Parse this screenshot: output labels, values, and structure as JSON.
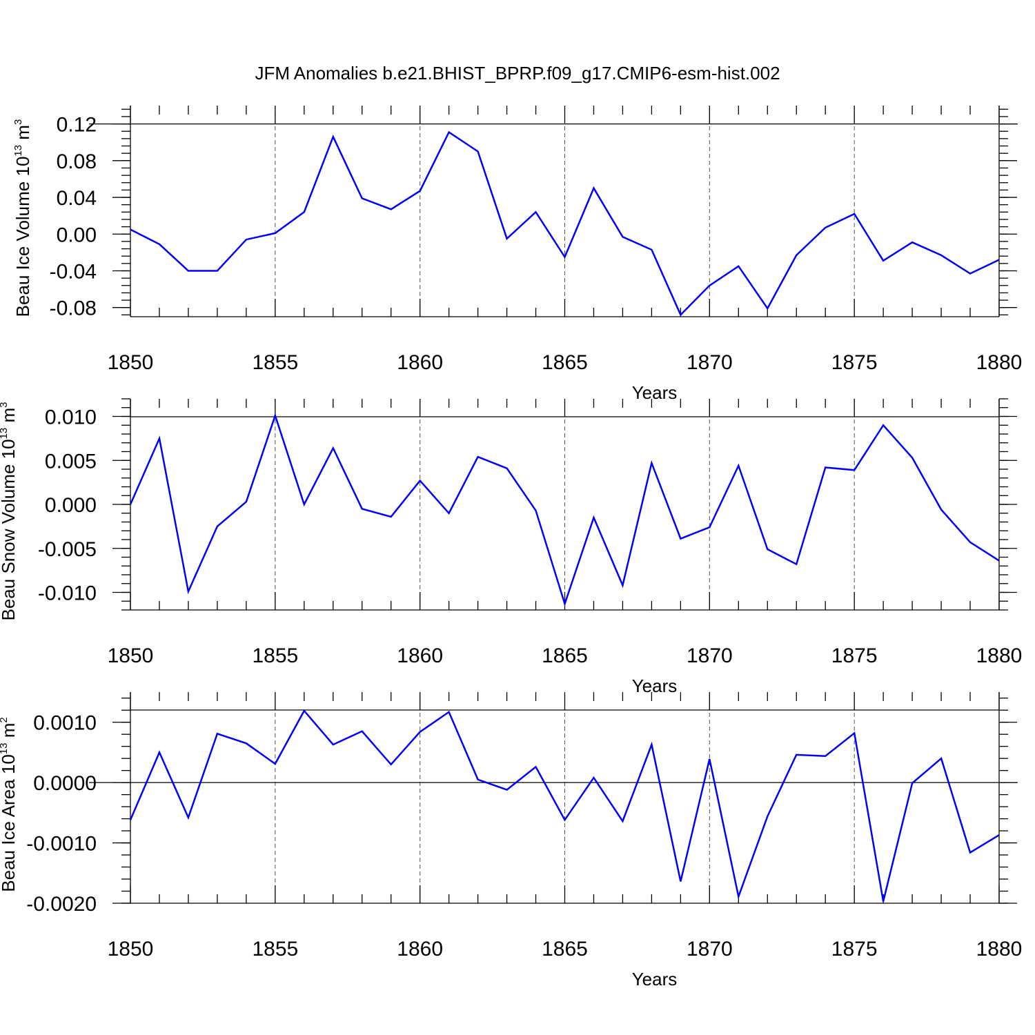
{
  "chart_data": {
    "type": "line",
    "title": "JFM Anomalies b.e21.BHIST_BPRP.f09_g17.CMIP6-esm-hist.002",
    "x": [
      1850,
      1851,
      1852,
      1853,
      1854,
      1855,
      1856,
      1857,
      1858,
      1859,
      1860,
      1861,
      1862,
      1863,
      1864,
      1865,
      1866,
      1867,
      1868,
      1869,
      1870,
      1871,
      1872,
      1873,
      1874,
      1875,
      1876,
      1877,
      1878,
      1879,
      1880
    ],
    "xlim": [
      1850,
      1880
    ],
    "x_tick_labels": [
      "1850",
      "1855",
      "1860",
      "1865",
      "1870",
      "1875",
      "1880"
    ],
    "vertical_grid": "dashed at major x ticks",
    "line_color": "#0000ff",
    "panels": [
      {
        "name": "ice-volume",
        "ylabel_main": "Beau Ice Volume 10",
        "ylabel_exp": "13",
        "ylabel_unit": " m",
        "ylabel_unit_exp": "3",
        "xlabel": "Years",
        "ylim": [
          -0.09,
          0.14
        ],
        "y_ref": 0.12,
        "y_ticks": [
          0.12,
          0.08,
          0.04,
          0.0,
          -0.04,
          -0.08
        ],
        "y_tick_labels": [
          "0.12",
          "0.08",
          "0.04",
          "0.00",
          "-0.04",
          "-0.08"
        ],
        "y_minor_step": 0.008,
        "values": [
          0.005,
          -0.011,
          -0.04,
          -0.04,
          -0.006,
          0.001,
          0.024,
          0.106,
          0.039,
          0.027,
          0.047,
          0.111,
          0.09,
          -0.005,
          0.024,
          -0.025,
          0.05,
          -0.003,
          -0.017,
          -0.088,
          -0.056,
          -0.035,
          -0.081,
          -0.023,
          0.007,
          0.022,
          -0.029,
          -0.009,
          -0.023,
          -0.043,
          -0.028
        ]
      },
      {
        "name": "snow-volume",
        "ylabel_main": "Beau Snow Volume 10",
        "ylabel_exp": "13",
        "ylabel_unit": " m",
        "ylabel_unit_exp": "3",
        "xlabel": "Years",
        "ylim": [
          -0.012,
          0.012
        ],
        "y_ref": null,
        "y_ticks": [
          0.01,
          0.005,
          0.0,
          -0.005,
          -0.01
        ],
        "y_tick_labels": [
          "0.010",
          "0.005",
          "0.000",
          "-0.005",
          "-0.010"
        ],
        "y_minor_step": 0.001,
        "values": [
          0.0,
          0.0075,
          -0.0099,
          -0.0025,
          0.0003,
          0.0101,
          0.0,
          0.0064,
          -0.0005,
          -0.0014,
          0.0027,
          -0.001,
          0.0054,
          0.0041,
          -0.0007,
          -0.0113,
          -0.0015,
          -0.0092,
          0.0047,
          -0.0039,
          -0.0026,
          0.0044,
          -0.0051,
          -0.0068,
          0.0042,
          0.0039,
          0.009,
          0.0053,
          -0.0006,
          -0.0043,
          -0.0064
        ]
      },
      {
        "name": "ice-area",
        "ylabel_main": "Beau Ice Area 10",
        "ylabel_exp": "13",
        "ylabel_unit": " m",
        "ylabel_unit_exp": "2",
        "xlabel": "Years",
        "ylim": [
          -0.002,
          0.0015
        ],
        "y_ref": 0.0,
        "y_ticks": [
          0.001,
          0.0,
          -0.001,
          -0.002
        ],
        "y_tick_labels": [
          "0.0010",
          "0.0000",
          "-0.0010",
          "-0.0020"
        ],
        "y_minor_step": 0.0002,
        "values": [
          -0.00062,
          0.0005,
          -0.00058,
          0.00081,
          0.00065,
          0.00031,
          0.00119,
          0.00063,
          0.00085,
          0.0003,
          0.00084,
          0.00117,
          5e-05,
          -0.00012,
          0.00026,
          -0.00062,
          8e-05,
          -0.00064,
          0.00063,
          -0.00164,
          0.00039,
          -0.00189,
          -0.00056,
          0.00046,
          0.00044,
          0.00082,
          -0.00197,
          -1e-05,
          0.0004,
          -0.00116,
          -0.00087
        ]
      }
    ]
  }
}
